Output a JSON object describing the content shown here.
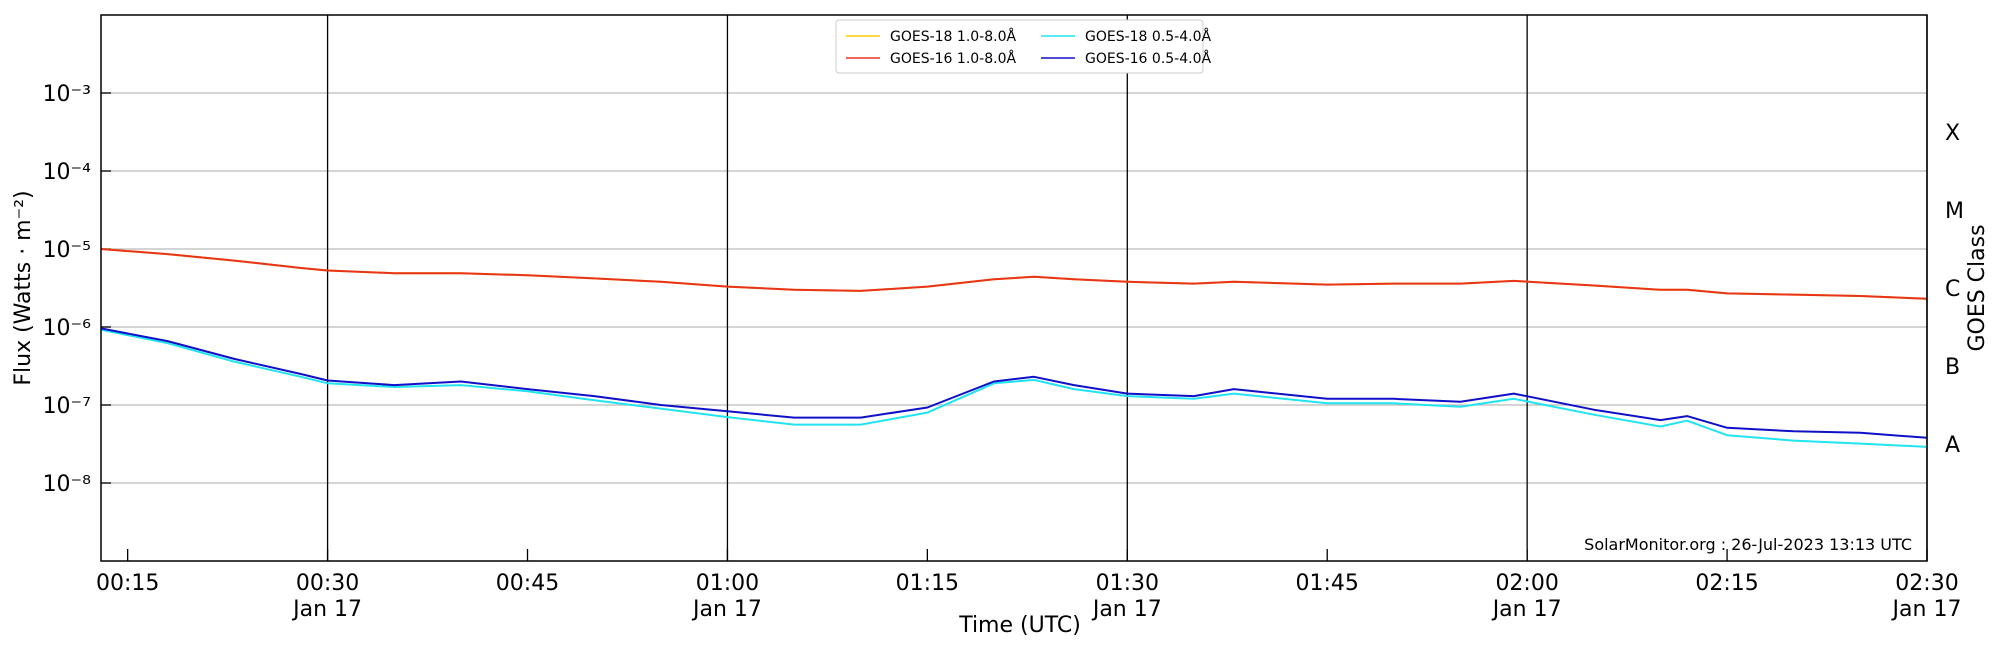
{
  "chart_data": {
    "type": "line",
    "xlabel": "Time (UTC)",
    "ylabel": "Flux (Watts · m⁻²)",
    "y2label": "GOES Class",
    "annotation": "SolarMonitor.org : 26-Jul-2023 13:13 UTC",
    "log_y": true,
    "grid": true,
    "legend": "upper center",
    "x": [
      "00:13",
      "00:18",
      "00:23",
      "00:28",
      "00:30",
      "00:35",
      "00:40",
      "00:45",
      "00:50",
      "00:55",
      "01:00",
      "01:05",
      "01:10",
      "01:15",
      "01:20",
      "01:23",
      "01:26",
      "01:30",
      "01:35",
      "01:38",
      "01:45",
      "01:50",
      "01:55",
      "01:59",
      "02:05",
      "02:10",
      "02:12",
      "02:15",
      "02:20",
      "02:25",
      "02:30"
    ],
    "xlim": [
      "00:13",
      "02:30"
    ],
    "xticks": [
      "00:15",
      {
        "value": "00:30",
        "label": "00:30",
        "date": "Jan 17"
      },
      "00:45",
      {
        "value": "01:00",
        "label": "01:00",
        "date": "Jan 17"
      },
      "01:15",
      {
        "value": "01:30",
        "label": "01:30",
        "date": "Jan 17"
      },
      "01:45",
      {
        "value": "02:00",
        "label": "02:00",
        "date": "Jan 17"
      },
      "02:15",
      {
        "value": "02:30",
        "label": "02:30",
        "date": "Jan 17"
      }
    ],
    "ylim": [
      1e-09,
      0.01
    ],
    "yticks": [
      {
        "value": 1e-08,
        "label": "10⁻⁸"
      },
      {
        "value": 1e-07,
        "label": "10⁻⁷"
      },
      {
        "value": 1e-06,
        "label": "10⁻⁶"
      },
      {
        "value": 1e-05,
        "label": "10⁻⁵"
      },
      {
        "value": 0.0001,
        "label": "10⁻⁴"
      },
      {
        "value": 0.001,
        "label": "10⁻³"
      }
    ],
    "y2lim": [
      1e-09,
      0.01
    ],
    "y2ticks": [
      {
        "value": 3.16e-08,
        "label": "A"
      },
      {
        "value": 3.16e-07,
        "label": "B"
      },
      {
        "value": 3.16e-06,
        "label": "C"
      },
      {
        "value": 3.16e-05,
        "label": "M"
      },
      {
        "value": 0.000316,
        "label": "X"
      }
    ],
    "series": [
      {
        "name": "GOES-18 1.0-8.0Å",
        "color": "#ffcc00",
        "values": [
          1e-05,
          8.6e-06,
          7.1e-06,
          5.7e-06,
          5.3e-06,
          4.9e-06,
          4.9e-06,
          4.6e-06,
          4.2e-06,
          3.8e-06,
          3.3e-06,
          3e-06,
          2.9e-06,
          3.3e-06,
          4.1e-06,
          4.4e-06,
          4.1e-06,
          3.8e-06,
          3.6e-06,
          3.8e-06,
          3.5e-06,
          3.6e-06,
          3.6e-06,
          3.9e-06,
          3.4e-06,
          3e-06,
          3e-06,
          2.7e-06,
          2.6e-06,
          2.5e-06,
          2.3e-06
        ]
      },
      {
        "name": "GOES-16 1.0-8.0Å",
        "color": "#e8341c",
        "values": [
          1e-05,
          8.6e-06,
          7.1e-06,
          5.7e-06,
          5.3e-06,
          4.9e-06,
          4.9e-06,
          4.6e-06,
          4.2e-06,
          3.8e-06,
          3.3e-06,
          3e-06,
          2.9e-06,
          3.3e-06,
          4.1e-06,
          4.4e-06,
          4.1e-06,
          3.8e-06,
          3.6e-06,
          3.8e-06,
          3.5e-06,
          3.6e-06,
          3.6e-06,
          3.9e-06,
          3.4e-06,
          3e-06,
          3e-06,
          2.7e-06,
          2.6e-06,
          2.5e-06,
          2.3e-06
        ]
      },
      {
        "name": "GOES-18 0.5-4.0Å",
        "color": "#22e4f0",
        "values": [
          9.2e-07,
          6.2e-07,
          3.6e-07,
          2.3e-07,
          1.9e-07,
          1.7e-07,
          1.8e-07,
          1.5e-07,
          1.15e-07,
          9e-08,
          7e-08,
          5.6e-08,
          5.6e-08,
          8e-08,
          1.9e-07,
          2.1e-07,
          1.6e-07,
          1.3e-07,
          1.2e-07,
          1.4e-07,
          1.05e-07,
          1.05e-07,
          9.5e-08,
          1.2e-07,
          7.5e-08,
          5.3e-08,
          6.3e-08,
          4.1e-08,
          3.5e-08,
          3.2e-08,
          2.9e-08
        ]
      },
      {
        "name": "GOES-16 0.5-4.0Å",
        "color": "#1010c8",
        "values": [
          9.6e-07,
          6.6e-07,
          3.9e-07,
          2.5e-07,
          2.06e-07,
          1.8e-07,
          2e-07,
          1.6e-07,
          1.3e-07,
          1e-07,
          8.3e-08,
          6.9e-08,
          6.9e-08,
          9.3e-08,
          2e-07,
          2.3e-07,
          1.8e-07,
          1.4e-07,
          1.3e-07,
          1.6e-07,
          1.2e-07,
          1.2e-07,
          1.1e-07,
          1.4e-07,
          8.7e-08,
          6.4e-08,
          7.2e-08,
          5.1e-08,
          4.6e-08,
          4.4e-08,
          3.8e-08
        ]
      }
    ]
  }
}
